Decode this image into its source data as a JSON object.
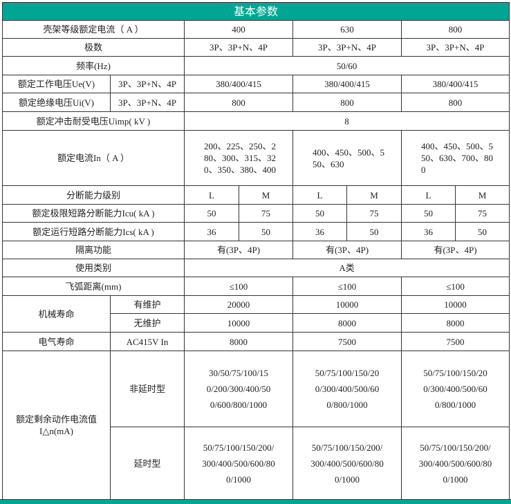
{
  "title": "基本参数",
  "frame": {
    "label": "壳架等级额定电流（ A ）",
    "values": [
      "400",
      "630",
      "800"
    ]
  },
  "poles": {
    "label": "极数",
    "values": [
      "3P、3P+N、4P",
      "3P、3P+N、4P",
      "3P、3P+N、4P"
    ]
  },
  "freq": {
    "label": "频率(Hz)",
    "value": "50/60"
  },
  "ue": {
    "label": "额定工作电压Ue(V)",
    "sub": "3P、3P+N、4P",
    "values": [
      "380/400/415",
      "380/400/415",
      "380/400/415"
    ]
  },
  "ui": {
    "label": "额定绝缘电压Ui(V)",
    "sub": "3P、3P+N、4P",
    "values": [
      "800",
      "800",
      "800"
    ]
  },
  "uimp": {
    "label": "额定冲击耐受电压Uimp( kV )",
    "value": "8"
  },
  "in": {
    "label": "额定电流In（ A ）",
    "values": [
      "200、225、250、280、300、315、320、350、380、400",
      "400、450、500、550、630",
      "400、450、500、550、630、700、800"
    ]
  },
  "breaking": {
    "label": "分断能力级别",
    "values": [
      "L",
      "M",
      "L",
      "M",
      "L",
      "M"
    ]
  },
  "icu": {
    "label": "额定极限短路分断能力Icu( kA )",
    "values": [
      "50",
      "75",
      "50",
      "75",
      "50",
      "75"
    ]
  },
  "ics": {
    "label": "额定运行短路分断能力Ics( kA )",
    "values": [
      "36",
      "50",
      "36",
      "50",
      "36",
      "50"
    ]
  },
  "isolation": {
    "label": "隔离功能",
    "values": [
      "有(3P、4P)",
      "有(3P、4P)",
      "有(3P、4P)"
    ]
  },
  "category": {
    "label": "使用类别",
    "value": "A类"
  },
  "arc": {
    "label": "飞弧距离(mm)",
    "values": [
      "≤100",
      "≤100",
      "≤100"
    ]
  },
  "mech": {
    "label": "机械寿命",
    "with_label": "有维护",
    "with": [
      "20000",
      "10000",
      "10000"
    ],
    "without_label": "无维护",
    "without": [
      "10000",
      "8000",
      "8000"
    ]
  },
  "elec": {
    "label": "电气寿命",
    "sub": "AC415V In",
    "values": [
      "8000",
      "7500",
      "7500"
    ]
  },
  "residual": {
    "label": "额定剩余动作电流值",
    "label2": "I△n(mA)",
    "nodelay_label": "非延时型",
    "nodelay": [
      "30/50/75/100/150/200/300/400/500/600/800/1000",
      "50/75/100/150/200/300/400/500/600/800/1000",
      "50/75/100/150/200/300/400/500/600/800/1000"
    ],
    "delay_label": "延时型",
    "delay": [
      "50/75/100/150/200/300/400/500/600/800/1000",
      "50/75/100/150/200/300/400/500/600/800/1000",
      "50/75/100/150/200/300/400/500/600/800/1000"
    ]
  },
  "colors": {
    "header": "#00a693"
  }
}
